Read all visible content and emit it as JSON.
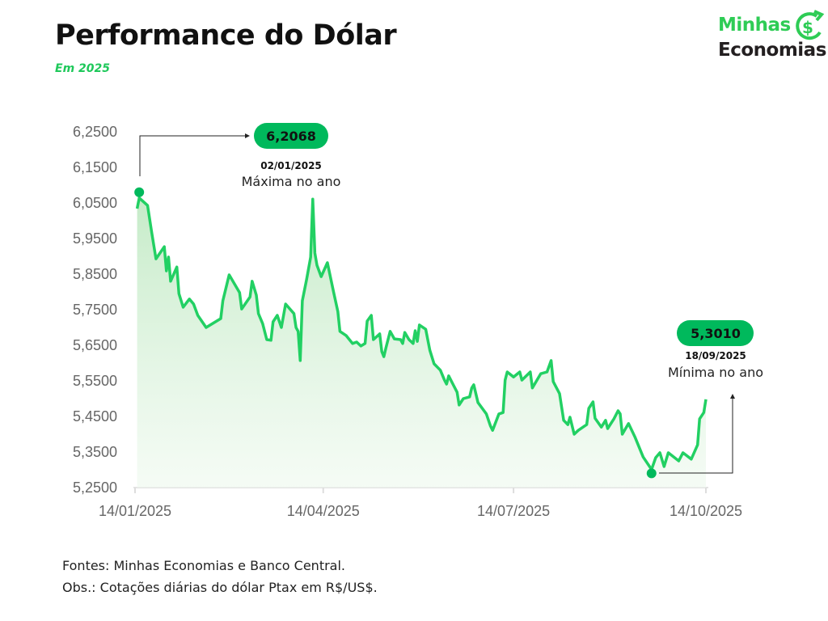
{
  "header": {
    "title": "Performance do Dólar",
    "subtitle": "Em 2025"
  },
  "logo": {
    "line1": "Minhas",
    "line2": "Economias"
  },
  "footer": {
    "sources": "Fontes: Minhas Economias e Banco Central.",
    "note": "Obs.: Cotações diárias do dólar Ptax em R$/US$."
  },
  "colors": {
    "line": "#22d063",
    "accent": "#00b95c",
    "fill_top": "#c8ecc8"
  },
  "chart_data": {
    "type": "area",
    "title": "Performance do Dólar",
    "xlabel": "",
    "ylabel": "R$/US$",
    "ylim": [
      5.25,
      6.25
    ],
    "xlim_days_since_start": [
      0,
      273
    ],
    "y_ticks": [
      "6,2500",
      "6,1500",
      "6,0500",
      "5,9500",
      "5,8500",
      "5,7500",
      "5,6500",
      "5,5500",
      "5,4500",
      "5,3500",
      "5,2500"
    ],
    "y_tick_values": [
      6.25,
      6.15,
      6.05,
      5.95,
      5.85,
      5.75,
      5.65,
      5.55,
      5.45,
      5.35,
      5.25
    ],
    "x_ticks": [
      {
        "label": "14/01/2025",
        "day": 0
      },
      {
        "label": "14/04/2025",
        "day": 90
      },
      {
        "label": "14/07/2025",
        "day": 181
      },
      {
        "label": "14/10/2025",
        "day": 273
      }
    ],
    "series": [
      {
        "name": "Dólar Ptax",
        "points": [
          [
            1,
            6.034
          ],
          [
            2,
            6.064
          ],
          [
            6,
            6.043
          ],
          [
            8,
            5.966
          ],
          [
            10,
            5.893
          ],
          [
            14,
            5.927
          ],
          [
            15,
            5.859
          ],
          [
            16,
            5.898
          ],
          [
            17,
            5.83
          ],
          [
            20,
            5.87
          ],
          [
            21,
            5.795
          ],
          [
            23,
            5.757
          ],
          [
            26,
            5.78
          ],
          [
            28,
            5.766
          ],
          [
            30,
            5.734
          ],
          [
            34,
            5.7
          ],
          [
            37,
            5.711
          ],
          [
            41,
            5.725
          ],
          [
            42,
            5.775
          ],
          [
            45,
            5.848
          ],
          [
            50,
            5.798
          ],
          [
            51,
            5.752
          ],
          [
            55,
            5.786
          ],
          [
            56,
            5.83
          ],
          [
            58,
            5.791
          ],
          [
            59,
            5.739
          ],
          [
            61,
            5.711
          ],
          [
            63,
            5.666
          ],
          [
            65,
            5.664
          ],
          [
            66,
            5.716
          ],
          [
            68,
            5.734
          ],
          [
            70,
            5.7
          ],
          [
            72,
            5.766
          ],
          [
            76,
            5.739
          ],
          [
            77,
            5.7
          ],
          [
            78,
            5.689
          ],
          [
            79,
            5.607
          ],
          [
            80,
            5.775
          ],
          [
            82,
            5.834
          ],
          [
            84,
            5.898
          ],
          [
            85,
            6.061
          ],
          [
            86,
            5.909
          ],
          [
            87,
            5.875
          ],
          [
            89,
            5.843
          ],
          [
            92,
            5.882
          ],
          [
            95,
            5.798
          ],
          [
            97,
            5.745
          ],
          [
            98,
            5.689
          ],
          [
            101,
            5.677
          ],
          [
            104,
            5.655
          ],
          [
            106,
            5.659
          ],
          [
            108,
            5.648
          ],
          [
            110,
            5.655
          ],
          [
            111,
            5.718
          ],
          [
            113,
            5.734
          ],
          [
            114,
            5.666
          ],
          [
            117,
            5.682
          ],
          [
            118,
            5.632
          ],
          [
            119,
            5.618
          ],
          [
            120,
            5.643
          ],
          [
            122,
            5.689
          ],
          [
            124,
            5.668
          ],
          [
            127,
            5.666
          ],
          [
            128,
            5.655
          ],
          [
            129,
            5.686
          ],
          [
            131,
            5.666
          ],
          [
            133,
            5.655
          ],
          [
            134,
            5.691
          ],
          [
            135,
            5.661
          ],
          [
            136,
            5.707
          ],
          [
            139,
            5.695
          ],
          [
            141,
            5.636
          ],
          [
            143,
            5.598
          ],
          [
            146,
            5.58
          ],
          [
            148,
            5.552
          ],
          [
            149,
            5.541
          ],
          [
            150,
            5.564
          ],
          [
            152,
            5.541
          ],
          [
            154,
            5.518
          ],
          [
            155,
            5.482
          ],
          [
            157,
            5.5
          ],
          [
            160,
            5.505
          ],
          [
            161,
            5.53
          ],
          [
            162,
            5.539
          ],
          [
            163,
            5.514
          ],
          [
            164,
            5.489
          ],
          [
            168,
            5.457
          ],
          [
            170,
            5.423
          ],
          [
            171,
            5.411
          ],
          [
            174,
            5.457
          ],
          [
            176,
            5.461
          ],
          [
            177,
            5.552
          ],
          [
            178,
            5.575
          ],
          [
            181,
            5.561
          ],
          [
            184,
            5.575
          ],
          [
            185,
            5.552
          ],
          [
            189,
            5.575
          ],
          [
            190,
            5.53
          ],
          [
            194,
            5.57
          ],
          [
            197,
            5.575
          ],
          [
            199,
            5.607
          ],
          [
            200,
            5.548
          ],
          [
            203,
            5.514
          ],
          [
            205,
            5.439
          ],
          [
            207,
            5.427
          ],
          [
            208,
            5.448
          ],
          [
            210,
            5.4
          ],
          [
            212,
            5.411
          ],
          [
            216,
            5.427
          ],
          [
            217,
            5.473
          ],
          [
            219,
            5.491
          ],
          [
            220,
            5.445
          ],
          [
            223,
            5.42
          ],
          [
            225,
            5.439
          ],
          [
            226,
            5.416
          ],
          [
            229,
            5.443
          ],
          [
            231,
            5.466
          ],
          [
            232,
            5.457
          ],
          [
            233,
            5.4
          ],
          [
            236,
            5.43
          ],
          [
            239,
            5.393
          ],
          [
            243,
            5.336
          ],
          [
            247,
            5.301
          ],
          [
            249,
            5.334
          ],
          [
            251,
            5.348
          ],
          [
            253,
            5.309
          ],
          [
            255,
            5.348
          ],
          [
            260,
            5.325
          ],
          [
            262,
            5.348
          ],
          [
            266,
            5.33
          ],
          [
            269,
            5.37
          ],
          [
            270,
            5.443
          ],
          [
            272,
            5.461
          ],
          [
            273,
            5.498
          ]
        ]
      }
    ],
    "annotations": {
      "max": {
        "value_label": "6,2068",
        "date": "02/01/2025",
        "label": "Máxima no ano",
        "marker_day": 2,
        "marker_value": 6.08
      },
      "min": {
        "value_label": "5,3010",
        "date": "18/09/2025",
        "label": "Mínima no ano",
        "marker_day": 247,
        "marker_value": 5.29
      }
    },
    "grid": false,
    "legend": "none"
  }
}
